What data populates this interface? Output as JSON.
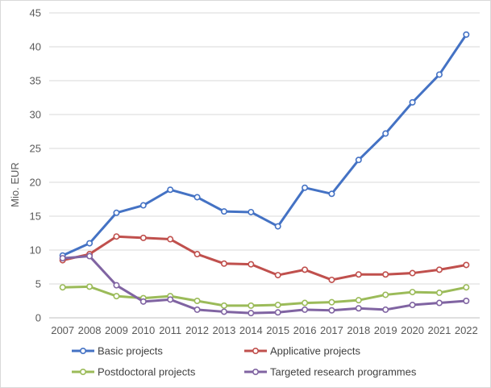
{
  "chart_data": {
    "type": "line",
    "title": "",
    "xlabel": "",
    "ylabel": "Mio. EUR",
    "ylim": [
      0,
      45
    ],
    "yticks": [
      0,
      5,
      10,
      15,
      20,
      25,
      30,
      35,
      40,
      45
    ],
    "grid": true,
    "legend_position": "bottom",
    "categories": [
      "2007",
      "2008",
      "2009",
      "2010",
      "2011",
      "2012",
      "2013",
      "2014",
      "2015",
      "2016",
      "2017",
      "2018",
      "2019",
      "2020",
      "2021",
      "2022"
    ],
    "series": [
      {
        "name": "Basic projects",
        "color": "#4472c4",
        "values": [
          9.2,
          11.0,
          15.5,
          16.6,
          18.9,
          17.8,
          15.7,
          15.6,
          13.5,
          19.2,
          18.3,
          23.3,
          27.2,
          31.8,
          35.9,
          41.8
        ]
      },
      {
        "name": "Applicative projects",
        "color": "#c0504d",
        "values": [
          8.5,
          9.4,
          12.0,
          11.8,
          11.6,
          9.4,
          8.0,
          7.9,
          6.3,
          7.1,
          5.6,
          6.4,
          6.4,
          6.6,
          7.1,
          7.8
        ]
      },
      {
        "name": "Postdoctoral projects",
        "color": "#9bbb59",
        "values": [
          4.5,
          4.6,
          3.2,
          2.9,
          3.2,
          2.5,
          1.8,
          1.8,
          1.9,
          2.2,
          2.3,
          2.6,
          3.4,
          3.8,
          3.7,
          4.5
        ]
      },
      {
        "name": "Targeted research programmes",
        "color": "#8064a2",
        "values": [
          8.8,
          9.1,
          4.8,
          2.4,
          2.7,
          1.2,
          0.9,
          0.7,
          0.8,
          1.2,
          1.1,
          1.4,
          1.2,
          1.9,
          2.2,
          2.5
        ]
      }
    ]
  }
}
